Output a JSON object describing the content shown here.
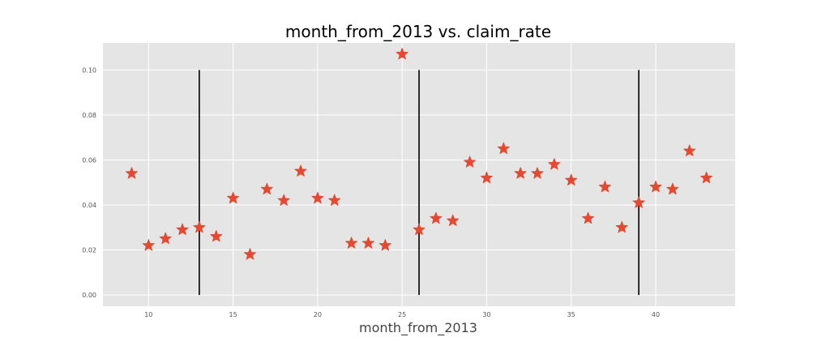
{
  "chart_data": {
    "type": "scatter",
    "title": "month_from_2013 vs. claim_rate",
    "xlabel": "month_from_2013",
    "ylabel": "",
    "xlim": [
      7.3,
      44.7
    ],
    "ylim": [
      -0.005,
      0.112
    ],
    "xticks": [
      10,
      15,
      20,
      25,
      30,
      35,
      40
    ],
    "yticks": [
      0.0,
      0.02,
      0.04,
      0.06,
      0.08,
      0.1
    ],
    "ytick_labels": [
      "0.00",
      "0.02",
      "0.04",
      "0.06",
      "0.08",
      "0.10"
    ],
    "grid": true,
    "marker": "star",
    "series": [
      {
        "x": [
          9,
          10,
          11,
          12,
          13,
          14,
          15,
          16,
          17,
          18,
          19,
          20,
          21,
          22,
          23,
          24,
          25,
          26,
          27,
          28,
          29,
          30,
          31,
          32,
          33,
          34,
          35,
          36,
          37,
          38,
          39,
          40,
          41,
          42,
          43
        ],
        "y": [
          0.054,
          0.022,
          0.025,
          0.029,
          0.03,
          0.026,
          0.043,
          0.018,
          0.047,
          0.042,
          0.055,
          0.043,
          0.042,
          0.023,
          0.023,
          0.022,
          0.107,
          0.029,
          0.034,
          0.033,
          0.059,
          0.052,
          0.065,
          0.054,
          0.054,
          0.058,
          0.051,
          0.034,
          0.048,
          0.03,
          0.041,
          0.048,
          0.047,
          0.064,
          0.052
        ]
      }
    ],
    "vlines": [
      {
        "x": 13,
        "ymin": 0.0,
        "ymax": 0.1
      },
      {
        "x": 26,
        "ymin": 0.0,
        "ymax": 0.1
      },
      {
        "x": 39,
        "ymin": 0.0,
        "ymax": 0.1
      }
    ],
    "colors": {
      "background": "#e5e5e5",
      "grid": "#ffffff",
      "marker": "#e24a33",
      "vline": "#000000"
    }
  }
}
